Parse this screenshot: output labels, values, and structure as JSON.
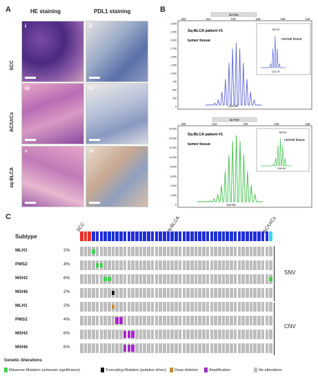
{
  "panelA": {
    "letter": "A",
    "col_he": "HE staining",
    "col_pdl1": "PDL1 staining",
    "rows": [
      {
        "label": "SCC",
        "he_tag": "i",
        "pdl_tag": "ii"
      },
      {
        "label": "AC/UrCs",
        "he_tag": "iii",
        "pdl_tag": "iv"
      },
      {
        "label": "sq-BLCA",
        "he_tag": "v",
        "pdl_tag": "vi"
      }
    ]
  },
  "panelB": {
    "letter": "B",
    "top": {
      "marker": "BAT25",
      "title": "Sq-BLCA patient #1",
      "subtitle": "tumor tissue",
      "x_ticks": [
        "104",
        "112",
        "120",
        "128",
        "136",
        "144"
      ],
      "y_ticks": [
        "2,500",
        "2,250",
        "2,000",
        "1,750",
        "1,500",
        "1,250",
        "1,000",
        "750",
        "500",
        "250",
        "0"
      ],
      "peak_label": "122.36",
      "inset_label": "normal tissue",
      "inset_marker": "BAT25",
      "inset_peak": "122.37",
      "inset_x_ticks": [
        "104",
        "112",
        "120",
        "128",
        "136",
        "144"
      ],
      "inset_y_ticks": [
        "8,000",
        "7,000",
        "6,000",
        "5,000",
        "4,000",
        "3,000",
        "2,000",
        "1,000",
        "0"
      ],
      "color": "#5a63d6"
    },
    "bottom": {
      "marker": "BAT26",
      "title": "Sq-BLCA patient #1",
      "subtitle": "tumor tissue",
      "x_ticks": [
        "105",
        "110",
        "115",
        "120",
        "125"
      ],
      "y_ticks": [
        "16,000",
        "14,000",
        "12,000",
        "10,000",
        "8,000",
        "6,000",
        "4,000",
        "2,000",
        "0"
      ],
      "peak_label": "115.94",
      "inset_label": "normal tissue",
      "inset_marker": "BAT26",
      "inset_peak": "116.84",
      "inset_x_ticks": [
        "105",
        "110",
        "115",
        "120",
        "125"
      ],
      "inset_y_ticks": [
        "6,500",
        "6,000",
        "5,500",
        "5,000",
        "4,500",
        "4,000",
        "3,500",
        "3,000",
        "2,500",
        "2,000",
        "1,500",
        "1,000",
        "500",
        "0"
      ],
      "color": "#3fbf4a"
    }
  },
  "panelC": {
    "letter": "C",
    "subtype_label": "Subtype",
    "group_labels": [
      "SCC",
      "sq-BLCA",
      "AC/UrCs"
    ],
    "subtype_counts": {
      "SCC": 3,
      "sq-BLCA": 45,
      "AC/UrCs": 1
    },
    "subtype_colors": {
      "SCC": "#e8312a",
      "sq-BLCA": "#1f2fd6",
      "AC/UrCs": "#3fd3e8"
    },
    "rows": [
      {
        "gene": "MLH1",
        "pct": "2%",
        "alt": [
          {
            "col": 3,
            "type": "missense"
          }
        ]
      },
      {
        "gene": "PMS2",
        "pct": "4%",
        "alt": [
          {
            "col": 4,
            "type": "missense"
          },
          {
            "col": 5,
            "type": "missense"
          }
        ]
      },
      {
        "gene": "MSH2",
        "pct": "6%",
        "alt": [
          {
            "col": 6,
            "type": "missense"
          },
          {
            "col": 7,
            "type": "missense"
          },
          {
            "col": 48,
            "type": "missense"
          }
        ]
      },
      {
        "gene": "MSH6",
        "pct": "2%",
        "alt": [
          {
            "col": 8,
            "type": "truncating"
          }
        ]
      },
      {
        "gene": "MLH1",
        "pct": "2%",
        "alt": [
          {
            "col": 8,
            "type": "deep"
          }
        ]
      },
      {
        "gene": "PMS2",
        "pct": "4%",
        "alt": [
          {
            "col": 9,
            "type": "amp"
          },
          {
            "col": 10,
            "type": "amp"
          }
        ]
      },
      {
        "gene": "MSH2",
        "pct": "6%",
        "alt": [
          {
            "col": 11,
            "type": "amp"
          },
          {
            "col": 12,
            "type": "amp"
          },
          {
            "col": 13,
            "type": "amp"
          }
        ]
      },
      {
        "gene": "MSH6",
        "pct": "6%",
        "alt": [
          {
            "col": 11,
            "type": "amp"
          },
          {
            "col": 12,
            "type": "amp"
          },
          {
            "col": 13,
            "type": "amp"
          }
        ]
      }
    ],
    "snv_label": "SNV",
    "cnv_label": "CNV",
    "legend_title": "Genetic Alterations",
    "legend": [
      {
        "key": "missense",
        "label": "Missense Mutation (unknown significance)",
        "color": "#3fd33f"
      },
      {
        "key": "truncating",
        "label": "Truncating Mutation (putative driver)",
        "color": "#111111"
      },
      {
        "key": "deep",
        "label": "Deep deletion",
        "color": "#c98a3a"
      },
      {
        "key": "amp",
        "label": "Amplification",
        "color": "#a526c9"
      },
      {
        "key": "none",
        "label": "No alterations",
        "color": "#bdbdbd"
      }
    ]
  }
}
